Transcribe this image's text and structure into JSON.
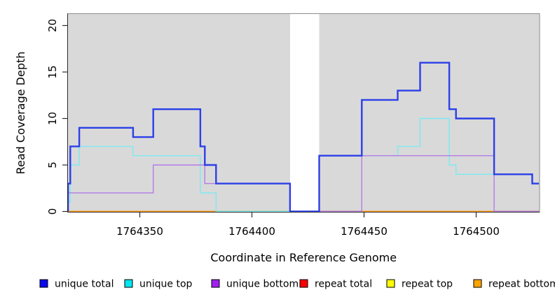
{
  "chart_data": {
    "type": "line",
    "subtype": "step-coverage",
    "title": "",
    "xlabel": "Coordinate in Reference Genome",
    "ylabel": "Read Coverage Depth",
    "xlim": [
      1764317,
      1764528
    ],
    "ylim": [
      0,
      21
    ],
    "xticks": [
      1764350,
      1764400,
      1764450,
      1764500
    ],
    "yticks": [
      0,
      5,
      10,
      15,
      20
    ],
    "grid": false,
    "panel_background": "#d9d9d9",
    "border_color": "#8c8c8c",
    "axis_color": "#2b2b2b",
    "gap_region": {
      "start": 1764417,
      "end": 1764430,
      "fill": "#ffffff"
    },
    "series": [
      {
        "name": "repeat total",
        "legend_color": "#ff0000",
        "line_color": "#d84368",
        "line_width": 1.4,
        "steps": [
          [
            1764317,
            0
          ]
        ],
        "end": 1764528
      },
      {
        "name": "repeat top",
        "legend_color": "#ffff00",
        "line_color": "#ffff00",
        "line_width": 1.4,
        "steps": [
          [
            1764317,
            0
          ]
        ],
        "end": 1764528
      },
      {
        "name": "repeat bottom",
        "legend_color": "#ffa500",
        "line_color": "#ff9614",
        "line_width": 1.8,
        "steps": [
          [
            1764317,
            0
          ]
        ],
        "end": 1764528
      },
      {
        "name": "unique top",
        "legend_color": "#00e5f0",
        "line_color": "#7ceaf2",
        "line_width": 1.4,
        "steps": [
          [
            1764317,
            1
          ],
          [
            1764319,
            5
          ],
          [
            1764323,
            7
          ],
          [
            1764347,
            6
          ],
          [
            1764377,
            2
          ],
          [
            1764384,
            0
          ],
          [
            1764430,
            6
          ],
          [
            1764465,
            7
          ],
          [
            1764475,
            10
          ],
          [
            1764488,
            5
          ],
          [
            1764491,
            4
          ],
          [
            1764525,
            3
          ]
        ],
        "end": 1764528
      },
      {
        "name": "unique bottom",
        "legend_color": "#a020f0",
        "line_color": "#b27ce6",
        "line_width": 1.4,
        "steps": [
          [
            1764317,
            2
          ],
          [
            1764356,
            5
          ],
          [
            1764379,
            3
          ],
          [
            1764417,
            0
          ],
          [
            1764449,
            6
          ],
          [
            1764508,
            0
          ]
        ],
        "end": 1764528
      },
      {
        "name": "unique total",
        "legend_color": "#0808f0",
        "line_color": "#2b3fe8",
        "line_width": 2.4,
        "steps": [
          [
            1764317,
            3
          ],
          [
            1764319,
            7
          ],
          [
            1764323,
            9
          ],
          [
            1764347,
            8
          ],
          [
            1764356,
            11
          ],
          [
            1764377,
            7
          ],
          [
            1764379,
            5
          ],
          [
            1764384,
            3
          ],
          [
            1764417,
            0
          ],
          [
            1764430,
            6
          ],
          [
            1764449,
            12
          ],
          [
            1764465,
            13
          ],
          [
            1764475,
            16
          ],
          [
            1764488,
            11
          ],
          [
            1764491,
            10
          ],
          [
            1764508,
            4
          ],
          [
            1764525,
            3
          ]
        ],
        "end": 1764528
      }
    ],
    "zero_line_segments": [
      {
        "from": 1764317,
        "to": 1764384,
        "color": "#ff9614",
        "width": 1.8
      },
      {
        "from": 1764384,
        "to": 1764417,
        "color": "#8fce8f",
        "width": 1.5
      },
      {
        "from": 1764430,
        "to": 1764449,
        "color": "#d84368",
        "width": 1.5
      },
      {
        "from": 1764449,
        "to": 1764508,
        "color": "#ff9614",
        "width": 1.8
      },
      {
        "from": 1764508,
        "to": 1764528,
        "color": "#d84368",
        "width": 1.5
      }
    ]
  },
  "legend": {
    "items": [
      {
        "label": "unique total",
        "color": "#0808f0"
      },
      {
        "label": "unique top",
        "color": "#00e5f0"
      },
      {
        "label": "unique bottom",
        "color": "#a020f0"
      },
      {
        "label": "repeat total",
        "color": "#ff0000"
      },
      {
        "label": "repeat top",
        "color": "#ffff00"
      },
      {
        "label": "repeat bottom",
        "color": "#ffa500"
      }
    ]
  }
}
